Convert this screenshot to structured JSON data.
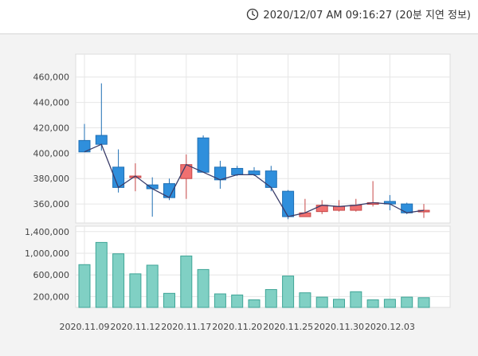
{
  "timestamp": "2020/12/07 AM 09:16:27 (20분 지연 정보)",
  "colors": {
    "down_fill": "#2f8fdc",
    "up_fill": "#f07070",
    "volume_fill": "#80d0c4",
    "volume_stroke": "#3fa597",
    "ma_line": "#3a3d6a",
    "grid": "#e6e6e6"
  },
  "chart_data": [
    {
      "type": "candlestick",
      "dates": [
        "2020.11.09",
        "2020.11.10",
        "2020.11.11",
        "2020.11.12",
        "2020.11.13",
        "2020.11.16",
        "2020.11.17",
        "2020.11.18",
        "2020.11.19",
        "2020.11.20",
        "2020.11.23",
        "2020.11.24",
        "2020.11.25",
        "2020.11.26",
        "2020.11.27",
        "2020.11.30",
        "2020.12.01",
        "2020.12.02",
        "2020.12.03",
        "2020.12.04",
        "2020.12.07"
      ],
      "open": [
        410000,
        414000,
        389000,
        381000,
        375000,
        376000,
        380000,
        412000,
        389000,
        388000,
        386000,
        386000,
        370000,
        350000,
        354000,
        355000,
        355000,
        361000,
        362000,
        360000,
        354000
      ],
      "high": [
        423000,
        455000,
        403000,
        392000,
        381000,
        380000,
        399000,
        414000,
        394000,
        390000,
        389000,
        390000,
        371000,
        364000,
        363000,
        363000,
        364000,
        378000,
        367000,
        361000,
        360000
      ],
      "low": [
        401000,
        402000,
        369000,
        370000,
        350000,
        363000,
        364000,
        385000,
        372000,
        382000,
        382000,
        370000,
        348000,
        350000,
        352000,
        354000,
        354000,
        358000,
        355000,
        352000,
        349000
      ],
      "close": [
        401000,
        407000,
        373000,
        382000,
        372000,
        365000,
        391000,
        385000,
        379000,
        383000,
        383000,
        373000,
        350000,
        353000,
        359000,
        358000,
        359000,
        361000,
        360000,
        353000,
        355000
      ],
      "volume": [
        790000,
        1200000,
        990000,
        620000,
        780000,
        260000,
        950000,
        700000,
        250000,
        230000,
        140000,
        330000,
        580000,
        270000,
        190000,
        150000,
        290000,
        140000,
        150000,
        190000,
        180000
      ],
      "x_tick_labels": [
        "2020.11.09",
        "2020.11.12",
        "2020.11.17",
        "2020.11.20",
        "2020.11.25",
        "2020.11.30",
        "2020.12.03"
      ],
      "price_axis": {
        "ticks": [
          "360,000",
          "380,000",
          "400,000",
          "420,000",
          "440,000",
          "460,000"
        ],
        "ylim": [
          345000,
          478000
        ]
      },
      "volume_axis": {
        "ticks": [
          "200,000",
          "600,000",
          "1,000,000",
          "1,400,000"
        ],
        "ylim": [
          0,
          1500000
        ]
      }
    }
  ]
}
